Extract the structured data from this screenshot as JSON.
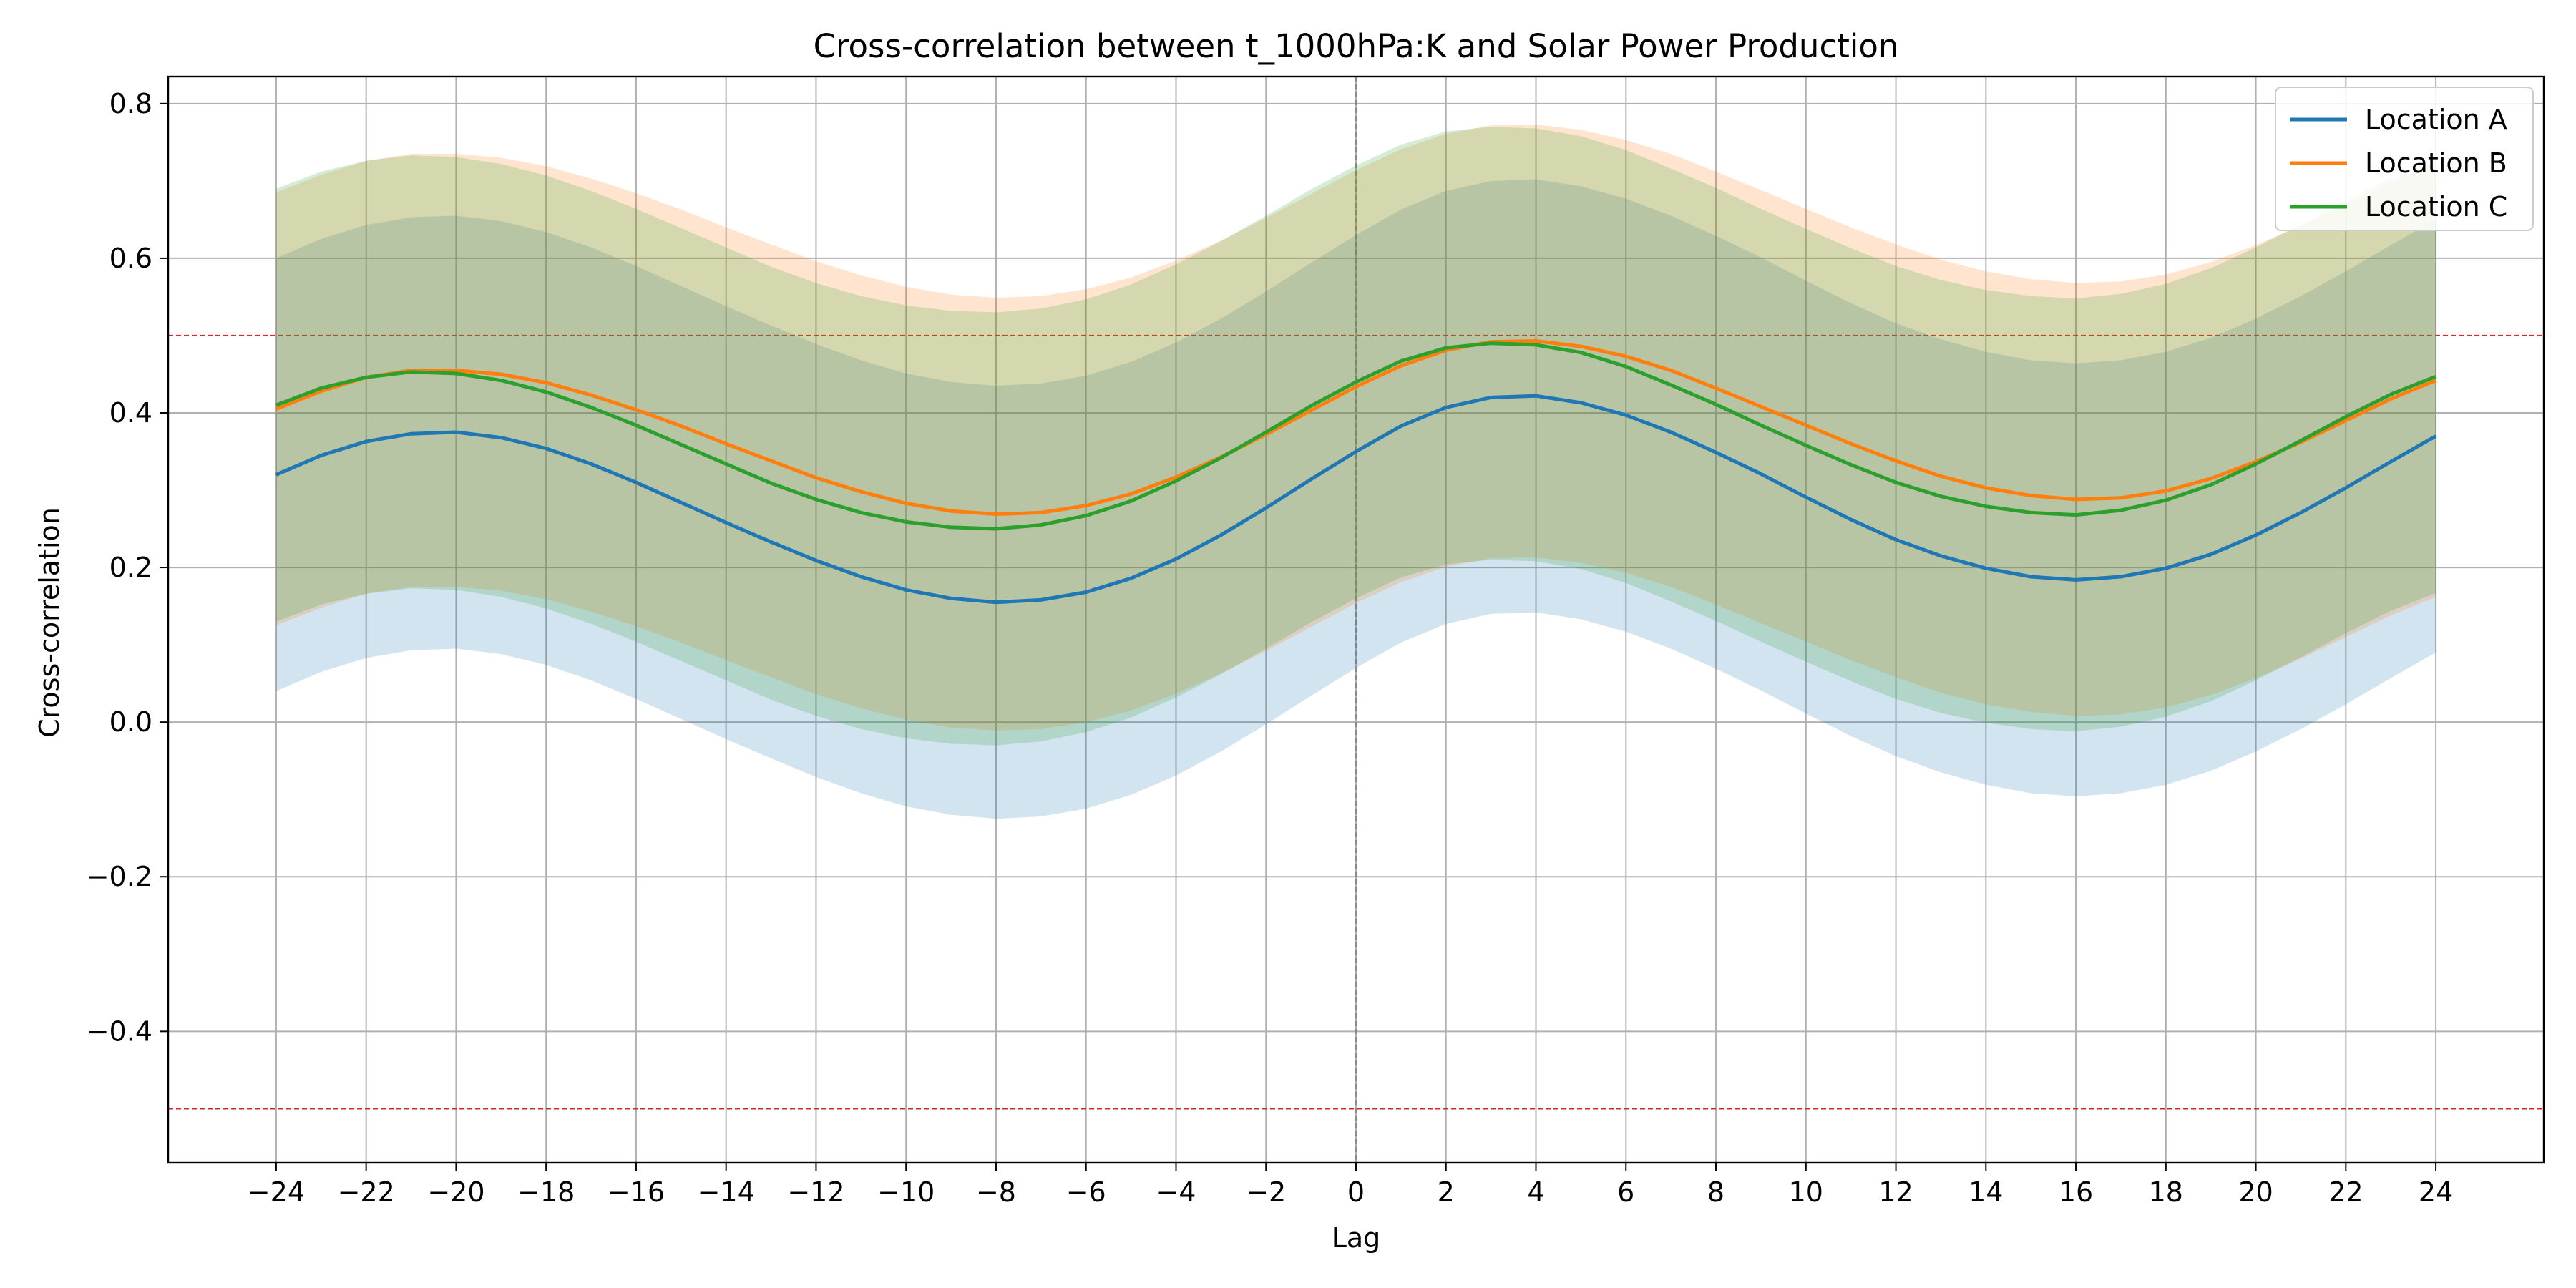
{
  "chart_data": {
    "type": "line",
    "title": "Cross-correlation between t_1000hPa:K and Solar Power Production",
    "xlabel": "Lag",
    "ylabel": "Cross-correlation",
    "xlim": [
      -26.4,
      26.4
    ],
    "ylim": [
      -0.57,
      0.835
    ],
    "grid": true,
    "legend_position": "top-right",
    "x_ticks": [
      -24,
      -22,
      -20,
      -18,
      -16,
      -14,
      -12,
      -10,
      -8,
      -6,
      -4,
      -2,
      0,
      2,
      4,
      6,
      8,
      10,
      12,
      14,
      16,
      18,
      20,
      22,
      24
    ],
    "y_ticks": [
      -0.4,
      -0.2,
      0.0,
      0.2,
      0.4,
      0.6,
      0.8
    ],
    "x_tick_labels": [
      "−24",
      "−22",
      "−20",
      "−18",
      "−16",
      "−14",
      "−12",
      "−10",
      "−8",
      "−6",
      "−4",
      "−2",
      "0",
      "2",
      "4",
      "6",
      "8",
      "10",
      "12",
      "14",
      "16",
      "18",
      "20",
      "22",
      "24"
    ],
    "y_tick_labels": [
      "−0.4",
      "−0.2",
      "0.0",
      "0.2",
      "0.4",
      "0.6",
      "0.8"
    ],
    "reference_lines": [
      {
        "axis": "y",
        "value": 0.5,
        "style": "dashed",
        "color": "#d62728"
      },
      {
        "axis": "y",
        "value": -0.5,
        "style": "dashed",
        "color": "#d62728"
      },
      {
        "axis": "x",
        "value": 0,
        "style": "dashed",
        "color": "#808080"
      }
    ],
    "x": [
      -24,
      -23,
      -22,
      -21,
      -20,
      -19,
      -18,
      -17,
      -16,
      -15,
      -14,
      -13,
      -12,
      -11,
      -10,
      -9,
      -8,
      -7,
      -6,
      -5,
      -4,
      -3,
      -2,
      -1,
      0,
      1,
      2,
      3,
      4,
      5,
      6,
      7,
      8,
      9,
      10,
      11,
      12,
      13,
      14,
      15,
      16,
      17,
      18,
      19,
      20,
      21,
      22,
      23,
      24
    ],
    "series": [
      {
        "name": "Location A",
        "color": "#1f77b4",
        "values": [
          0.32,
          0.345,
          0.363,
          0.373,
          0.375,
          0.368,
          0.354,
          0.334,
          0.31,
          0.284,
          0.258,
          0.233,
          0.209,
          0.188,
          0.171,
          0.16,
          0.155,
          0.158,
          0.168,
          0.186,
          0.211,
          0.242,
          0.277,
          0.314,
          0.35,
          0.383,
          0.407,
          0.42,
          0.422,
          0.413,
          0.397,
          0.375,
          0.349,
          0.321,
          0.291,
          0.262,
          0.236,
          0.215,
          0.199,
          0.188,
          0.184,
          0.188,
          0.199,
          0.217,
          0.242,
          0.271,
          0.303,
          0.337,
          0.37
        ],
        "ci_half_width": 0.28
      },
      {
        "name": "Location B",
        "color": "#ff7f0e",
        "values": [
          0.405,
          0.428,
          0.446,
          0.455,
          0.455,
          0.45,
          0.439,
          0.423,
          0.404,
          0.383,
          0.36,
          0.338,
          0.316,
          0.298,
          0.283,
          0.273,
          0.269,
          0.271,
          0.28,
          0.295,
          0.317,
          0.343,
          0.372,
          0.403,
          0.434,
          0.461,
          0.481,
          0.492,
          0.493,
          0.486,
          0.473,
          0.455,
          0.432,
          0.408,
          0.384,
          0.36,
          0.338,
          0.318,
          0.303,
          0.293,
          0.288,
          0.29,
          0.299,
          0.315,
          0.337,
          0.362,
          0.39,
          0.418,
          0.442
        ],
        "ci_half_width": 0.28
      },
      {
        "name": "Location C",
        "color": "#2ca02c",
        "values": [
          0.41,
          0.432,
          0.446,
          0.453,
          0.451,
          0.442,
          0.427,
          0.407,
          0.384,
          0.359,
          0.334,
          0.309,
          0.288,
          0.271,
          0.259,
          0.252,
          0.25,
          0.255,
          0.267,
          0.286,
          0.312,
          0.342,
          0.375,
          0.409,
          0.44,
          0.467,
          0.484,
          0.49,
          0.488,
          0.478,
          0.46,
          0.436,
          0.411,
          0.384,
          0.358,
          0.333,
          0.31,
          0.292,
          0.279,
          0.271,
          0.268,
          0.274,
          0.287,
          0.307,
          0.334,
          0.364,
          0.395,
          0.424,
          0.447
        ],
        "ci_half_width": 0.28
      }
    ]
  }
}
